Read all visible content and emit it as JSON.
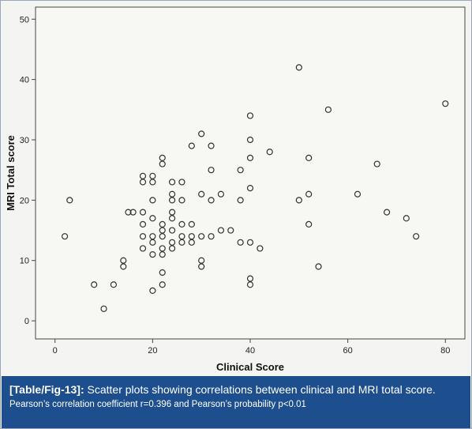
{
  "chart_data": {
    "type": "scatter",
    "title": "",
    "xlabel": "Clinical Score",
    "ylabel": "MRI Total score",
    "xlim": [
      -4,
      84
    ],
    "ylim": [
      -3,
      52
    ],
    "xticks": [
      0,
      20,
      40,
      60,
      80
    ],
    "yticks": [
      0,
      10,
      20,
      30,
      40,
      50
    ],
    "grid": false,
    "marker": "open-circle",
    "marker_color": "#333333",
    "points": [
      {
        "x": 2,
        "y": 14
      },
      {
        "x": 3,
        "y": 20
      },
      {
        "x": 8,
        "y": 6
      },
      {
        "x": 10,
        "y": 2
      },
      {
        "x": 12,
        "y": 6
      },
      {
        "x": 14,
        "y": 10
      },
      {
        "x": 14,
        "y": 9
      },
      {
        "x": 15,
        "y": 18
      },
      {
        "x": 16,
        "y": 18
      },
      {
        "x": 18,
        "y": 24
      },
      {
        "x": 18,
        "y": 23
      },
      {
        "x": 18,
        "y": 18
      },
      {
        "x": 18,
        "y": 16
      },
      {
        "x": 18,
        "y": 14
      },
      {
        "x": 18,
        "y": 12
      },
      {
        "x": 20,
        "y": 24
      },
      {
        "x": 20,
        "y": 23
      },
      {
        "x": 20,
        "y": 20
      },
      {
        "x": 20,
        "y": 17
      },
      {
        "x": 20,
        "y": 14
      },
      {
        "x": 20,
        "y": 13
      },
      {
        "x": 20,
        "y": 11
      },
      {
        "x": 20,
        "y": 5
      },
      {
        "x": 22,
        "y": 27
      },
      {
        "x": 22,
        "y": 26
      },
      {
        "x": 22,
        "y": 16
      },
      {
        "x": 22,
        "y": 15
      },
      {
        "x": 22,
        "y": 14
      },
      {
        "x": 22,
        "y": 12
      },
      {
        "x": 22,
        "y": 11
      },
      {
        "x": 22,
        "y": 8
      },
      {
        "x": 22,
        "y": 6
      },
      {
        "x": 24,
        "y": 23
      },
      {
        "x": 24,
        "y": 21
      },
      {
        "x": 24,
        "y": 20
      },
      {
        "x": 24,
        "y": 18
      },
      {
        "x": 24,
        "y": 17
      },
      {
        "x": 24,
        "y": 15
      },
      {
        "x": 24,
        "y": 13
      },
      {
        "x": 24,
        "y": 12
      },
      {
        "x": 26,
        "y": 23
      },
      {
        "x": 26,
        "y": 20
      },
      {
        "x": 26,
        "y": 16
      },
      {
        "x": 26,
        "y": 14
      },
      {
        "x": 26,
        "y": 13
      },
      {
        "x": 28,
        "y": 29
      },
      {
        "x": 28,
        "y": 16
      },
      {
        "x": 28,
        "y": 14
      },
      {
        "x": 28,
        "y": 13
      },
      {
        "x": 30,
        "y": 31
      },
      {
        "x": 30,
        "y": 21
      },
      {
        "x": 30,
        "y": 14
      },
      {
        "x": 30,
        "y": 10
      },
      {
        "x": 30,
        "y": 9
      },
      {
        "x": 32,
        "y": 29
      },
      {
        "x": 32,
        "y": 25
      },
      {
        "x": 32,
        "y": 20
      },
      {
        "x": 32,
        "y": 14
      },
      {
        "x": 34,
        "y": 21
      },
      {
        "x": 34,
        "y": 15
      },
      {
        "x": 36,
        "y": 15
      },
      {
        "x": 38,
        "y": 25
      },
      {
        "x": 38,
        "y": 20
      },
      {
        "x": 38,
        "y": 13
      },
      {
        "x": 40,
        "y": 34
      },
      {
        "x": 40,
        "y": 30
      },
      {
        "x": 40,
        "y": 27
      },
      {
        "x": 40,
        "y": 22
      },
      {
        "x": 40,
        "y": 13
      },
      {
        "x": 40,
        "y": 7
      },
      {
        "x": 40,
        "y": 6
      },
      {
        "x": 42,
        "y": 12
      },
      {
        "x": 44,
        "y": 28
      },
      {
        "x": 50,
        "y": 42
      },
      {
        "x": 50,
        "y": 20
      },
      {
        "x": 52,
        "y": 27
      },
      {
        "x": 52,
        "y": 21
      },
      {
        "x": 52,
        "y": 16
      },
      {
        "x": 54,
        "y": 9
      },
      {
        "x": 56,
        "y": 35
      },
      {
        "x": 62,
        "y": 21
      },
      {
        "x": 66,
        "y": 26
      },
      {
        "x": 68,
        "y": 18
      },
      {
        "x": 72,
        "y": 17
      },
      {
        "x": 74,
        "y": 14
      },
      {
        "x": 80,
        "y": 36
      }
    ]
  },
  "caption": {
    "tag": "[Table/Fig-13]:",
    "text": "Scatter plots showing correlations between clinical and MRI total score.",
    "subtext": "Pearson’s correlation coefficient r=0.396 and Pearson’s probability p<0.01"
  },
  "colors": {
    "caption_background": "#1d4f8f",
    "plot_background": "#f7f7f4",
    "marker_stroke": "#333333"
  }
}
